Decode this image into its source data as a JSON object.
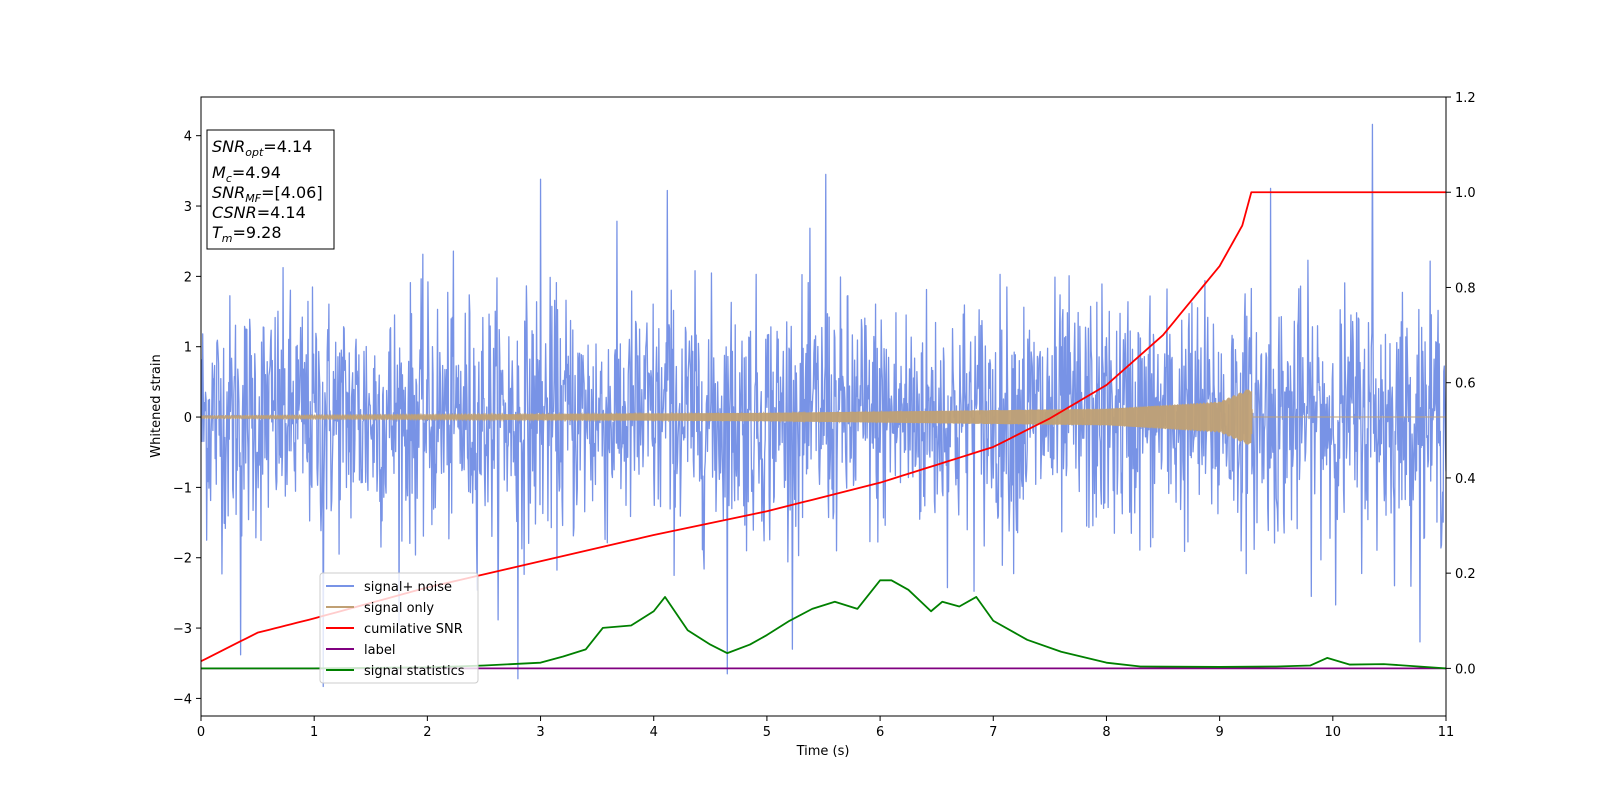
{
  "chart_data": {
    "type": "line",
    "xlabel": "Time (s)",
    "ylabel": "Whitened strain",
    "xlim": [
      0,
      11
    ],
    "ylim": [
      -4.25,
      4.55
    ],
    "y2lim": [
      -0.1,
      1.2
    ],
    "xticks": [
      0,
      1,
      2,
      3,
      4,
      5,
      6,
      7,
      8,
      9,
      10,
      11
    ],
    "yticks": [
      -4,
      -3,
      -2,
      -1,
      0,
      1,
      2,
      3,
      4
    ],
    "y2ticks": [
      "0.0",
      "0.2",
      "0.4",
      "0.6",
      "0.8",
      "1.0",
      "1.2"
    ],
    "y2tick_values": [
      0.0,
      0.2,
      0.4,
      0.6,
      0.8,
      1.0,
      1.2
    ],
    "legend_position": "lower-left",
    "grid": false,
    "series": [
      {
        "name": "signal+ noise",
        "color": "#7893e6",
        "axis": "left",
        "noise_std": 0.85,
        "sample_count": 2200,
        "peak_spikes": [
          {
            "x": 10.35,
            "y": 4.16
          },
          {
            "x": 5.52,
            "y": 3.45
          },
          {
            "x": 3.0,
            "y": 3.38
          },
          {
            "x": 1.08,
            "y": -3.83
          },
          {
            "x": 2.8,
            "y": -3.72
          },
          {
            "x": 4.65,
            "y": -3.65
          },
          {
            "x": 4.12,
            "y": 3.22
          },
          {
            "x": 9.45,
            "y": 3.25
          },
          {
            "x": 0.35,
            "y": -3.38
          }
        ]
      },
      {
        "name": "signal only",
        "color": "#c0a074",
        "axis": "left",
        "envelope": [
          [
            0,
            0.02
          ],
          [
            5,
            0.06
          ],
          [
            8,
            0.12
          ],
          [
            9,
            0.22
          ],
          [
            9.28,
            0.42
          ],
          [
            9.29,
            0.0
          ],
          [
            11,
            0.0
          ]
        ]
      },
      {
        "name": "cumilative SNR",
        "color": "#ff0000",
        "axis": "right",
        "x": [
          0,
          0.5,
          1,
          2,
          3,
          4,
          5,
          6,
          7,
          7.5,
          8,
          8.5,
          9,
          9.2,
          9.28,
          11
        ],
        "values": [
          0.015,
          0.075,
          0.105,
          0.17,
          0.225,
          0.28,
          0.33,
          0.39,
          0.465,
          0.525,
          0.595,
          0.7,
          0.845,
          0.93,
          1.0,
          1.0
        ]
      },
      {
        "name": "label",
        "color": "#800080",
        "axis": "right",
        "x": [
          0,
          11
        ],
        "values": [
          0.0,
          0.0
        ]
      },
      {
        "name": "signal statistics",
        "color": "#008000",
        "axis": "right",
        "x": [
          0,
          1,
          2.0,
          2.5,
          3.0,
          3.2,
          3.4,
          3.55,
          3.8,
          4.0,
          4.1,
          4.3,
          4.5,
          4.65,
          4.85,
          5.0,
          5.2,
          5.4,
          5.6,
          5.8,
          6.0,
          6.1,
          6.25,
          6.45,
          6.55,
          6.7,
          6.85,
          7.0,
          7.3,
          7.6,
          8.0,
          8.3,
          9.0,
          9.5,
          9.8,
          9.95,
          10.15,
          10.45,
          11
        ],
        "values": [
          0.0,
          0.0,
          0.002,
          0.006,
          0.012,
          0.025,
          0.04,
          0.085,
          0.09,
          0.12,
          0.15,
          0.08,
          0.05,
          0.032,
          0.05,
          0.07,
          0.1,
          0.125,
          0.14,
          0.125,
          0.185,
          0.185,
          0.165,
          0.12,
          0.14,
          0.13,
          0.15,
          0.1,
          0.06,
          0.035,
          0.012,
          0.004,
          0.003,
          0.004,
          0.006,
          0.022,
          0.008,
          0.009,
          0.0
        ]
      }
    ],
    "info_box": {
      "lines": [
        {
          "main": "SNR",
          "sub": "opt",
          "value": "=4.14"
        },
        {
          "main": "M",
          "sub": "c",
          "value": "=4.94"
        },
        {
          "main": "SNR",
          "sub": "MF",
          "value": "=[4.06]"
        },
        {
          "main": "CSNR",
          "sub": "",
          "value": "=4.14"
        },
        {
          "main": "T",
          "sub": "m",
          "value": "=9.28"
        }
      ]
    }
  }
}
